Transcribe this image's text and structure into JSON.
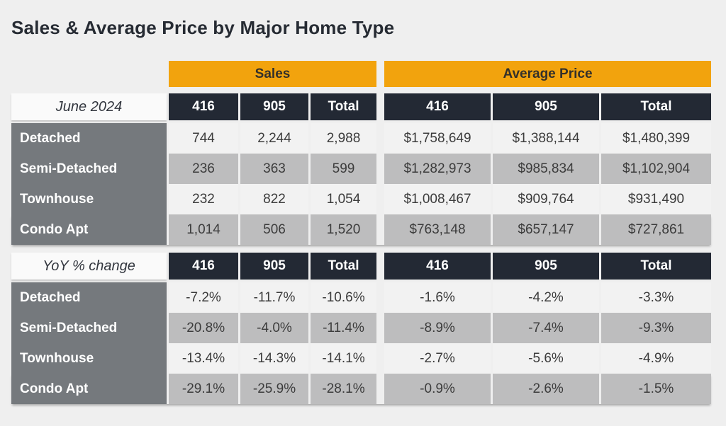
{
  "page": {
    "title": "Sales & Average Price by Major Home Type"
  },
  "colors": {
    "page_background": "#EFEFEF",
    "group_header_orange": "#F2A30D",
    "column_header_dark": "#232934",
    "row_label_gray": "#75797D",
    "row_light": "#F2F2F2",
    "row_shaded": "#BDBDBE",
    "title_text": "#262B33",
    "value_text": "#3C3C3C"
  },
  "chart_data": {
    "type": "table",
    "title": "Sales & Average Price by Major Home Type",
    "column_groups": [
      {
        "label": "Sales",
        "columns": [
          "416",
          "905",
          "Total"
        ]
      },
      {
        "label": "Average Price",
        "columns": [
          "416",
          "905",
          "Total"
        ]
      }
    ],
    "sections": [
      {
        "label": "June 2024",
        "rows": [
          {
            "name": "Detached",
            "sales": [
              "744",
              "2,244",
              "2,988"
            ],
            "avg_price": [
              "$1,758,649",
              "$1,388,144",
              "$1,480,399"
            ]
          },
          {
            "name": "Semi-Detached",
            "sales": [
              "236",
              "363",
              "599"
            ],
            "avg_price": [
              "$1,282,973",
              "$985,834",
              "$1,102,904"
            ]
          },
          {
            "name": "Townhouse",
            "sales": [
              "232",
              "822",
              "1,054"
            ],
            "avg_price": [
              "$1,008,467",
              "$909,764",
              "$931,490"
            ]
          },
          {
            "name": "Condo Apt",
            "sales": [
              "1,014",
              "506",
              "1,520"
            ],
            "avg_price": [
              "$763,148",
              "$657,147",
              "$727,861"
            ]
          }
        ]
      },
      {
        "label": "YoY % change",
        "rows": [
          {
            "name": "Detached",
            "sales": [
              "-7.2%",
              "-11.7%",
              "-10.6%"
            ],
            "avg_price": [
              "-1.6%",
              "-4.2%",
              "-3.3%"
            ]
          },
          {
            "name": "Semi-Detached",
            "sales": [
              "-20.8%",
              "-4.0%",
              "-11.4%"
            ],
            "avg_price": [
              "-8.9%",
              "-7.4%",
              "-9.3%"
            ]
          },
          {
            "name": "Townhouse",
            "sales": [
              "-13.4%",
              "-14.3%",
              "-14.1%"
            ],
            "avg_price": [
              "-2.7%",
              "-5.6%",
              "-4.9%"
            ]
          },
          {
            "name": "Condo Apt",
            "sales": [
              "-29.1%",
              "-25.9%",
              "-28.1%"
            ],
            "avg_price": [
              "-0.9%",
              "-2.6%",
              "-1.5%"
            ]
          }
        ]
      }
    ]
  }
}
